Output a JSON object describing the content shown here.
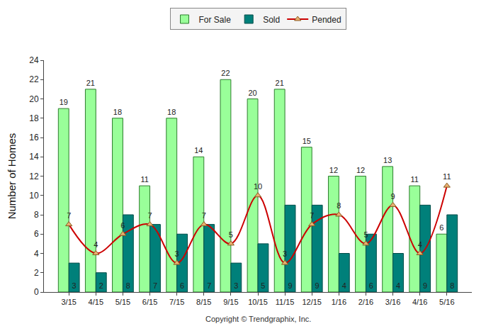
{
  "chart_data": {
    "type": "bar",
    "y_label": "Number of Homes",
    "annotations": [
      "Copyright © Trendgraphix, Inc."
    ],
    "categories": [
      "3/15",
      "4/15",
      "5/15",
      "6/15",
      "7/15",
      "8/15",
      "9/15",
      "10/15",
      "11/15",
      "12/15",
      "1/16",
      "2/16",
      "3/16",
      "4/16",
      "5/16"
    ],
    "series": [
      {
        "name": "For Sale",
        "type": "bar",
        "color": "#99ff99",
        "values": [
          19,
          21,
          18,
          11,
          18,
          14,
          22,
          20,
          21,
          15,
          12,
          12,
          13,
          11,
          6
        ]
      },
      {
        "name": "Sold",
        "type": "bar",
        "color": "#00807a",
        "values": [
          3,
          2,
          8,
          7,
          6,
          7,
          3,
          5,
          9,
          9,
          4,
          6,
          4,
          9,
          8
        ]
      },
      {
        "name": "Pended",
        "type": "line",
        "color": "#cc0000",
        "marker": "triangle-up",
        "line_style": "spline",
        "values": [
          7,
          4,
          6,
          7,
          3,
          7,
          5,
          10,
          3,
          7,
          8,
          5,
          9,
          4,
          11
        ]
      }
    ],
    "ylim": [
      0,
      24
    ],
    "yticks": [
      0,
      2,
      4,
      6,
      8,
      10,
      12,
      14,
      16,
      18,
      20,
      22,
      24
    ],
    "grid": false,
    "legend": "top",
    "data_labels": true
  }
}
